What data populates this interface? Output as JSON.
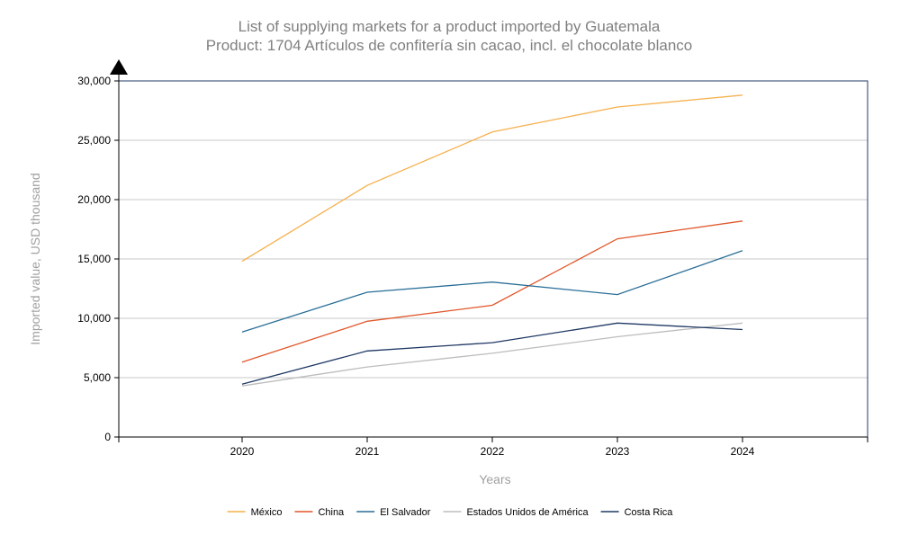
{
  "chart_data": {
    "type": "line",
    "title": "List of supplying markets for a product imported by Guatemala",
    "subtitle": "Product: 1704 Artículos de confitería sin cacao, incl. el chocolate blanco",
    "xlabel": "Years",
    "ylabel": "Imported value, USD thousand",
    "x": [
      "2020",
      "2021",
      "2022",
      "2023",
      "2024"
    ],
    "ylim": [
      0,
      30000
    ],
    "yticks": [
      0,
      5000,
      10000,
      15000,
      20000,
      25000,
      30000
    ],
    "ytick_labels": [
      "0",
      "5,000",
      "10,000",
      "15,000",
      "20,000",
      "25,000",
      "30,000"
    ],
    "grid": true,
    "legend_position": "bottom",
    "series": [
      {
        "name": "México",
        "color": "#f6b04c",
        "values": [
          14800,
          21200,
          25700,
          27800,
          28800
        ]
      },
      {
        "name": "China",
        "color": "#e0572a",
        "values": [
          6300,
          9750,
          11100,
          16700,
          18200
        ]
      },
      {
        "name": "El Salvador",
        "color": "#2a6f97",
        "values": [
          8850,
          12200,
          13050,
          12000,
          15700
        ]
      },
      {
        "name": "Estados Unidos de América",
        "color": "#bdbdbd",
        "values": [
          4300,
          5900,
          7050,
          8450,
          9600
        ]
      },
      {
        "name": "Costa Rica",
        "color": "#1f3864",
        "values": [
          4450,
          7250,
          7950,
          9600,
          9050
        ]
      }
    ]
  }
}
